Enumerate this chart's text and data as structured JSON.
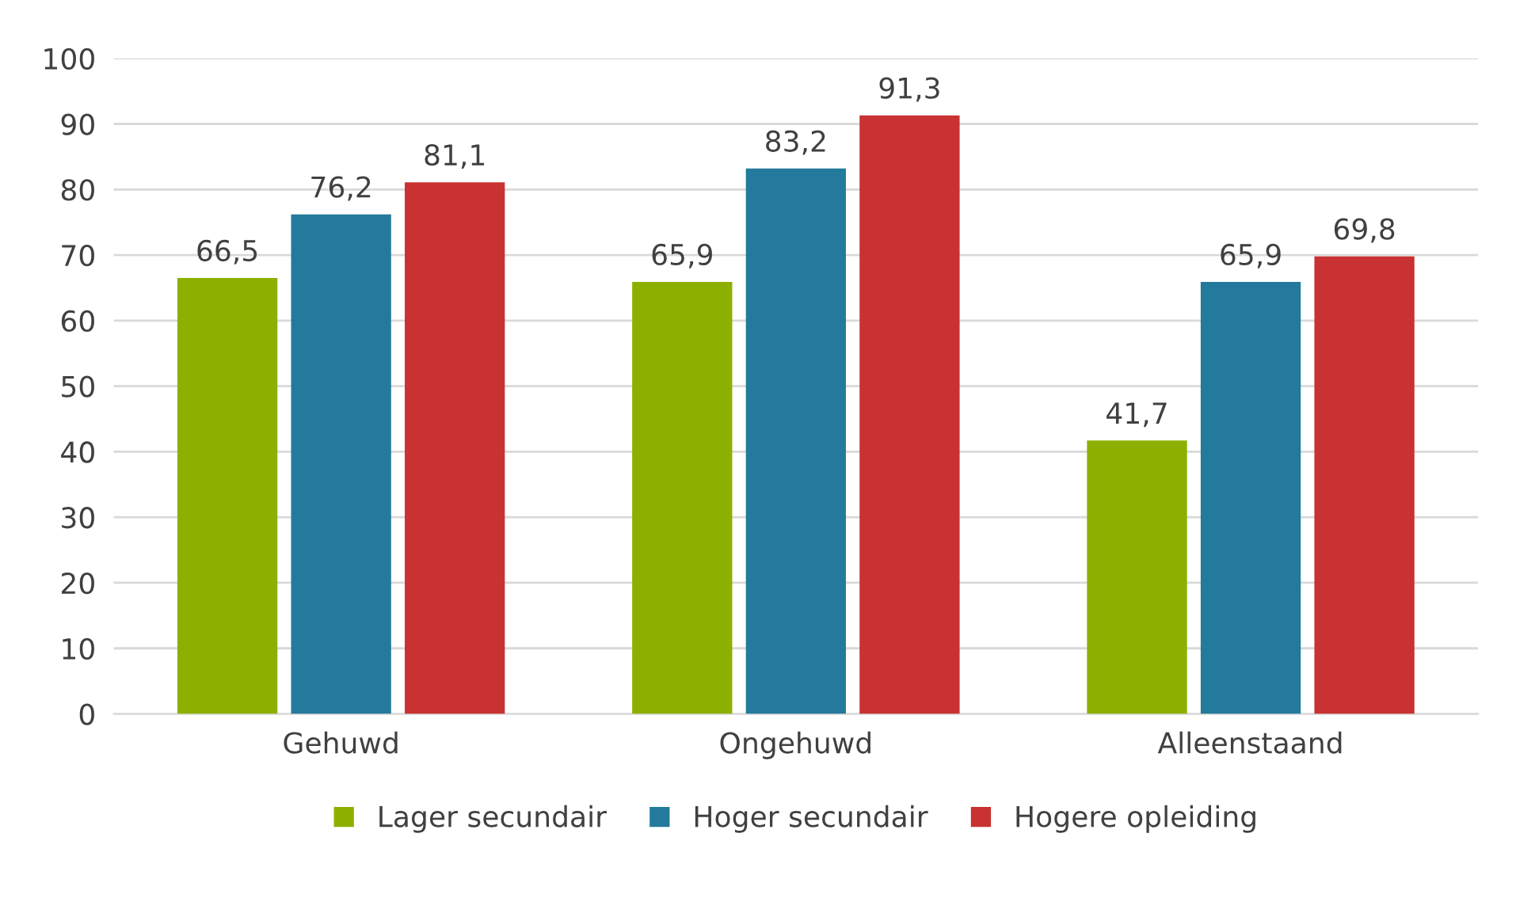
{
  "chart_data": {
    "type": "bar",
    "categories": [
      "Gehuwd",
      "Ongehuwd",
      "Alleenstaand"
    ],
    "series": [
      {
        "name": "Lager secundair",
        "color": "#8db000",
        "values": [
          66.5,
          65.9,
          41.7
        ],
        "value_labels": [
          "66,5",
          "65,9",
          "41,7"
        ]
      },
      {
        "name": "Hoger secundair",
        "color": "#247a9c",
        "values": [
          76.2,
          83.2,
          65.9
        ],
        "value_labels": [
          "76,2",
          "83,2",
          "65,9"
        ]
      },
      {
        "name": "Hogere opleiding",
        "color": "#c83232",
        "values": [
          81.1,
          91.3,
          69.8
        ],
        "value_labels": [
          "81,1",
          "91,3",
          "69,8"
        ]
      }
    ],
    "ylim": [
      0,
      100
    ],
    "yticks": [
      0,
      10,
      20,
      30,
      40,
      50,
      60,
      70,
      80,
      90,
      100
    ],
    "grid": "y",
    "legend": "bottom"
  }
}
